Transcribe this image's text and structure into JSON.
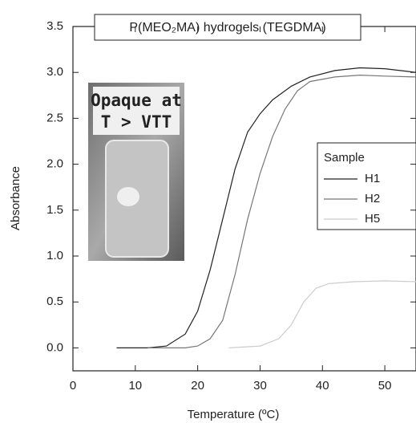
{
  "chart_data": {
    "type": "line",
    "title": "P(MEO₂MA) hydrogels (TEGDMA)",
    "x_label": "Temperature (ºC)",
    "y_label": "Absorbance",
    "annotations": [
      "Opaque at",
      "T > VTT"
    ],
    "legend_title": "Sample",
    "legend": "right",
    "xlim": [
      0,
      55
    ],
    "ylim": [
      -0.25,
      3.5
    ],
    "xticks": [
      0,
      10,
      20,
      30,
      40,
      50
    ],
    "yticks": [
      {
        "value": 0,
        "label": "0.0"
      },
      {
        "value": 0.5,
        "label": "0.5"
      },
      {
        "value": 1,
        "label": "1.0"
      },
      {
        "value": 1.5,
        "label": "1.5"
      },
      {
        "value": 2,
        "label": "2.0"
      },
      {
        "value": 2.5,
        "label": "2.5"
      },
      {
        "value": 3,
        "label": "3.0"
      },
      {
        "value": 3.5,
        "label": "3.5"
      }
    ],
    "series": [
      {
        "name": "H1",
        "color": "#222222",
        "x": [
          7,
          12,
          15,
          18,
          20,
          22,
          24,
          26,
          28,
          30,
          32,
          35,
          38,
          42,
          46,
          50,
          55
        ],
        "values": [
          0,
          0,
          0.02,
          0.15,
          0.4,
          0.85,
          1.4,
          1.95,
          2.35,
          2.55,
          2.7,
          2.85,
          2.95,
          3.02,
          3.05,
          3.04,
          3.0
        ]
      },
      {
        "name": "H2",
        "color": "#777777",
        "x": [
          12,
          18,
          20,
          22,
          24,
          26,
          28,
          30,
          32,
          34,
          36,
          38,
          42,
          46,
          50,
          55
        ],
        "values": [
          0,
          0,
          0.02,
          0.1,
          0.3,
          0.8,
          1.4,
          1.9,
          2.3,
          2.6,
          2.8,
          2.9,
          2.95,
          2.97,
          2.96,
          2.95
        ]
      },
      {
        "name": "H5",
        "color": "#cccccc",
        "x": [
          25,
          30,
          33,
          35,
          37,
          39,
          41,
          45,
          50,
          55
        ],
        "values": [
          0,
          0.02,
          0.1,
          0.25,
          0.5,
          0.65,
          0.7,
          0.72,
          0.73,
          0.72
        ]
      }
    ]
  }
}
